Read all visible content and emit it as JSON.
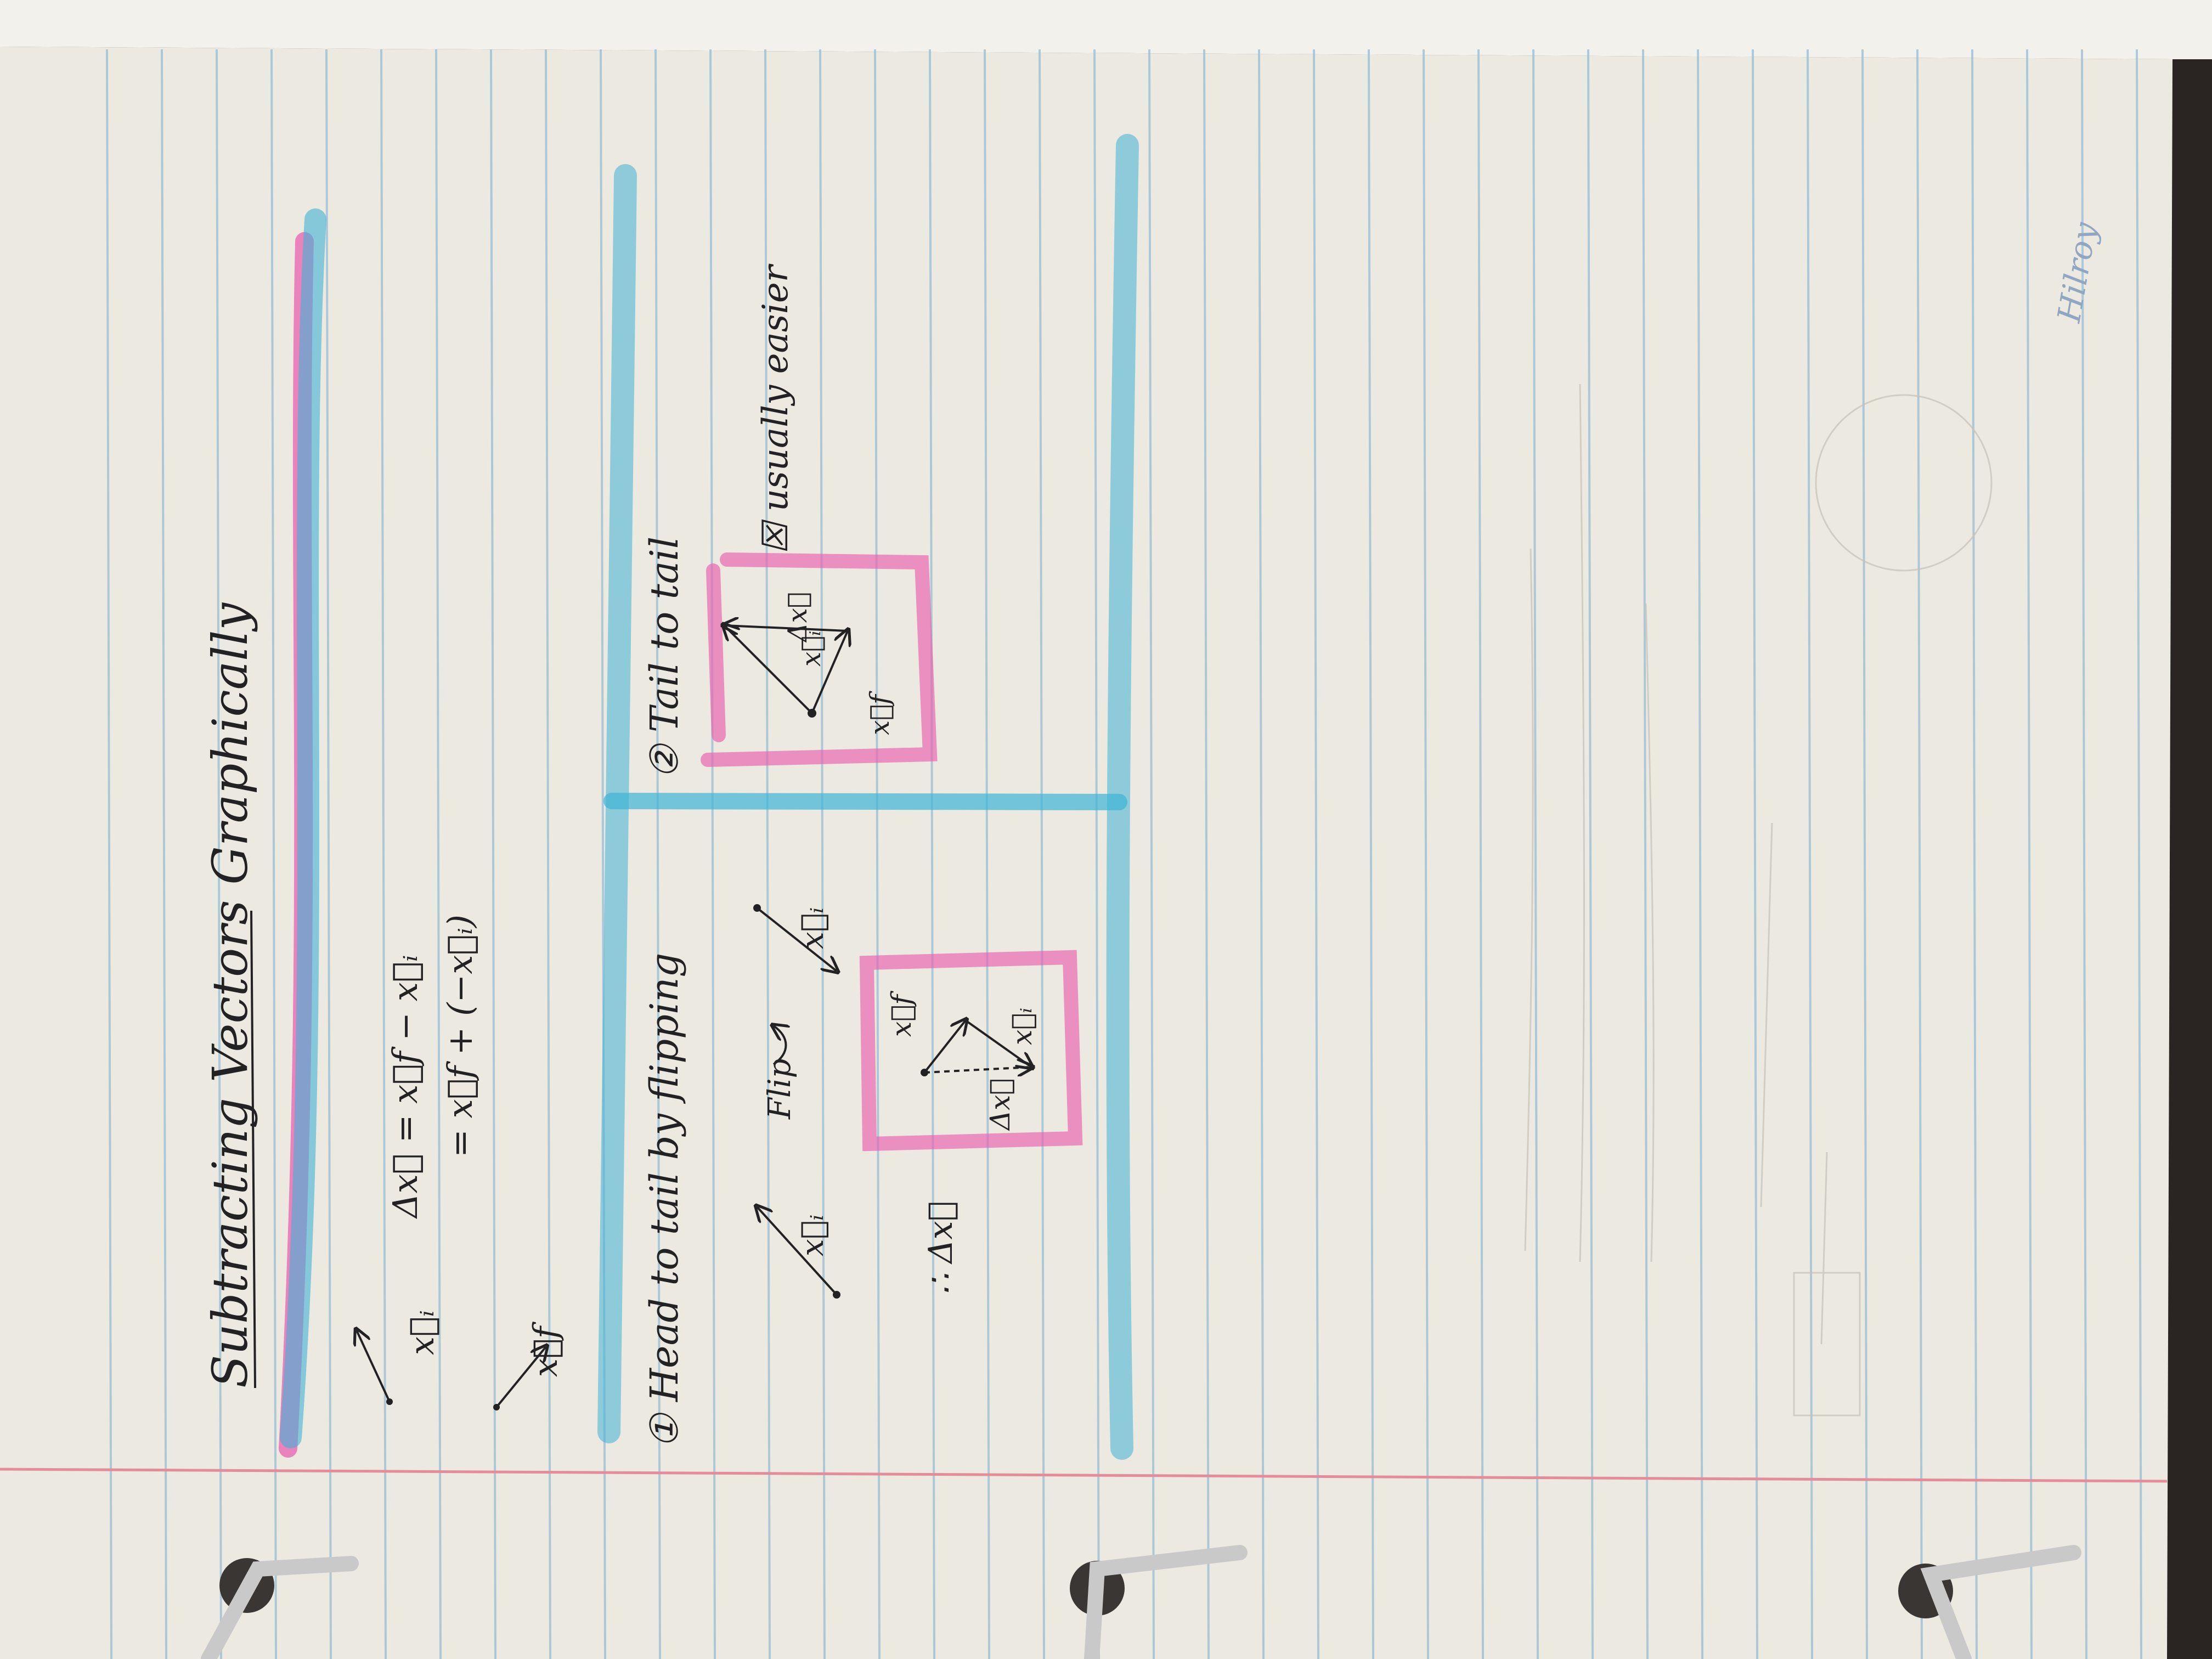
{
  "notebook": {
    "title": "Subtracting Vectors Graphically",
    "left_top": {
      "vec_xi_label": "x⃗ᵢ",
      "vec_xf_label": "x⃗f",
      "equation_1": "Δx⃗ = x⃗f − x⃗ᵢ",
      "equation_2": "= x⃗f + (−x⃗ᵢ)"
    },
    "method_1": {
      "heading": "① Head to tail by flipping",
      "xi_label": "x⃗ᵢ",
      "flip_label": "Flip",
      "flipped_label": "x⃗ᵢ",
      "box_xf": "x⃗f",
      "box_dx": "Δx⃗",
      "box_xi": "x⃗ᵢ",
      "therefore": "∴ Δx⃗"
    },
    "method_2": {
      "heading": "② Tail to tail",
      "box_dx": "Δx⃗",
      "box_xi": "x⃗ᵢ",
      "box_xf": "x⃗f",
      "note": "☒ usually easier"
    },
    "brand": "Hilroy",
    "colors": {
      "paper": "#ece9e1",
      "rule_blue": "#9cc0d8",
      "margin_red": "#e58c9a",
      "highlighter_blue": "#3fb3d6",
      "highlighter_pink": "#ea5fae",
      "ink": "#222222",
      "ring_metal": "#c9c9c9"
    }
  }
}
